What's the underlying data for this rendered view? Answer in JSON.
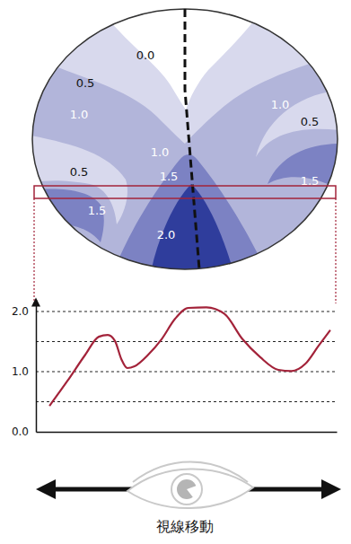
{
  "chart_data": [
    {
      "type": "contour",
      "levels": [
        0,
        0.5,
        1,
        1.5,
        2
      ],
      "colors": [
        "#ffffff",
        "#d8d9ed",
        "#b2b5da",
        "#7c82c3",
        "#2f3d9c"
      ],
      "labels": [
        {
          "value": 0,
          "label": "0.0"
        },
        {
          "value": 0.5,
          "label": "0.5"
        },
        {
          "value": 1,
          "label": "1.0"
        },
        {
          "value": 1,
          "label": "1.0"
        },
        {
          "value": 0.5,
          "label": "0.5"
        },
        {
          "value": 1,
          "label": "1.0"
        },
        {
          "value": 0.5,
          "label": "0.5"
        },
        {
          "value": 1.5,
          "label": "1.5"
        },
        {
          "value": 1.5,
          "label": "1.5"
        },
        {
          "value": 1.5,
          "label": "1.5"
        },
        {
          "value": 2,
          "label": "2.0"
        }
      ]
    },
    {
      "type": "line",
      "xlabel": "視線移動",
      "x": [
        4.5,
        10.4,
        16.4,
        20.9,
        23.9,
        26.3,
        28.4,
        30.4,
        32.8,
        37.3,
        41.8,
        46.3,
        50.7,
        56.7,
        62.7,
        68.7,
        74.6,
        80.6,
        85,
        89.6,
        94,
        97.9
      ],
      "values": [
        0.43,
        0.84,
        1.28,
        1.58,
        1.61,
        1.51,
        1.21,
        1.06,
        1.09,
        1.28,
        1.54,
        1.88,
        2.06,
        2.07,
        1.96,
        1.54,
        1.24,
        1.03,
        1.01,
        1.13,
        1.43,
        1.69
      ],
      "color": "#a3233a",
      "xlim": [
        0,
        100
      ],
      "ylim": [
        0,
        2.2
      ],
      "yticks": [
        {
          "value": 0,
          "label": "0.0"
        },
        {
          "value": 1,
          "label": "1.0"
        },
        {
          "value": 2,
          "label": "2.0"
        }
      ],
      "grid": true,
      "grid_lines": [
        0.5,
        1,
        1.5,
        2
      ],
      "tick_labels": "y"
    }
  ]
}
